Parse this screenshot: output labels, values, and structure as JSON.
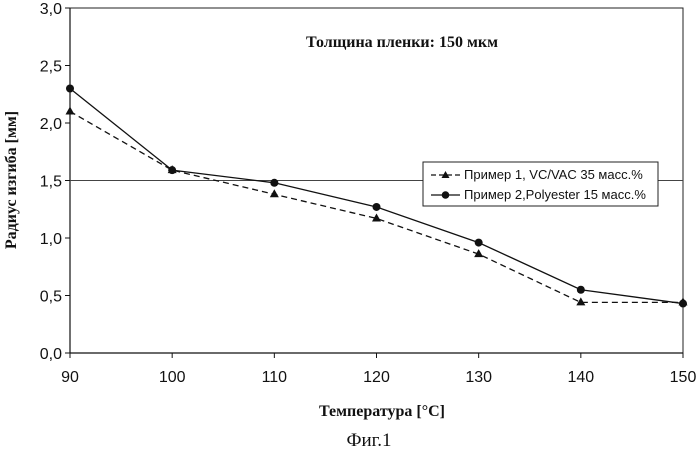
{
  "chart_data": {
    "type": "line",
    "annotation": "Толщина пленки: 150 мкм",
    "xlabel": "Температура   [°C]",
    "ylabel": "Радиус изгиба [мм]",
    "caption": "Фиг.1",
    "xlim": [
      90,
      150
    ],
    "ylim": [
      0,
      3
    ],
    "x_ticks": [
      "90",
      "100",
      "110",
      "120",
      "130",
      "140",
      "150"
    ],
    "y_ticks": [
      "0,0",
      "0,5",
      "1,0",
      "1,5",
      "2,0",
      "2,5",
      "3,0"
    ],
    "x": [
      90,
      100,
      110,
      120,
      130,
      140,
      150
    ],
    "grid": "horizontal line at 1,5",
    "legend_position": "right",
    "series": [
      {
        "name": "Пример 1, VC/VAC 35 масс.%",
        "values": [
          2.1,
          1.59,
          1.38,
          1.17,
          0.86,
          0.44,
          0.44
        ],
        "marker": "triangle",
        "line": "dashed",
        "color": "#111111"
      },
      {
        "name": "Пример 2,Polyester 15 масс.%",
        "values": [
          2.3,
          1.59,
          1.48,
          1.27,
          0.96,
          0.55,
          0.43
        ],
        "marker": "circle",
        "line": "solid",
        "color": "#111111"
      }
    ]
  }
}
